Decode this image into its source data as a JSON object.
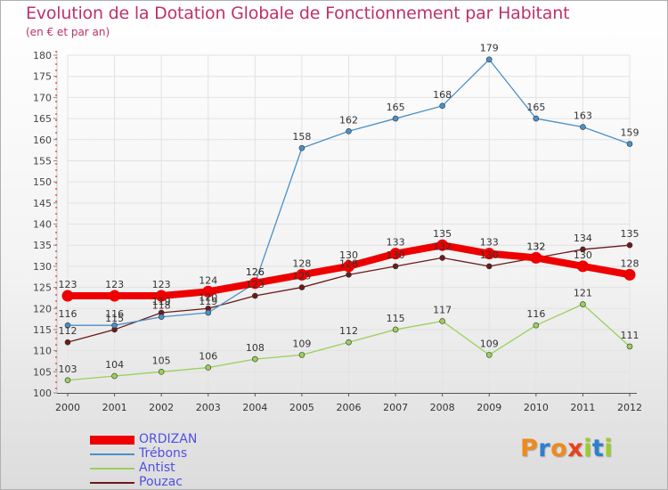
{
  "header": {
    "title": "Evolution de la Dotation Globale de Fonctionnement par Habitant",
    "subtitle": "(en € et par an)"
  },
  "logo": {
    "text": "Proxiti",
    "colors": [
      "#f08a1c",
      "#2e7fd0",
      "#f08a1c",
      "#e8401c",
      "#9ccc2c",
      "#2e7fd0",
      "#9ccc2c"
    ]
  },
  "chart_data": {
    "type": "line",
    "x": [
      "2000",
      "2001",
      "2002",
      "2003",
      "2004",
      "2005",
      "2006",
      "2007",
      "2008",
      "2009",
      "2010",
      "2011",
      "2012"
    ],
    "ylim": [
      100,
      180
    ],
    "yticks": [
      100,
      105,
      110,
      115,
      120,
      125,
      130,
      135,
      140,
      145,
      150,
      155,
      160,
      165,
      170,
      175,
      180
    ],
    "grid": true,
    "legend_position": "bottom-left",
    "series": [
      {
        "name": "ORDIZAN",
        "color": "#ee0000",
        "bold": true,
        "values": [
          123,
          123,
          123,
          124,
          126,
          128,
          130,
          133,
          135,
          133,
          132,
          130,
          128
        ],
        "labels": [
          "123",
          "123",
          "123",
          "124",
          "126",
          "128",
          "130",
          "133",
          "135",
          "133",
          "132",
          "130",
          "128"
        ]
      },
      {
        "name": "Trébons",
        "color": "#4a90c8",
        "bold": false,
        "values": [
          116,
          116,
          118,
          119,
          126,
          158,
          162,
          165,
          168,
          179,
          165,
          163,
          159
        ],
        "labels": [
          "116",
          "116",
          "118",
          "119",
          "126",
          "158",
          "162",
          "165",
          "168",
          "179",
          "165",
          "163",
          "159"
        ]
      },
      {
        "name": "Antist",
        "color": "#9ad05a",
        "bold": false,
        "values": [
          103,
          104,
          105,
          106,
          108,
          109,
          112,
          115,
          117,
          109,
          116,
          121,
          111
        ],
        "labels": [
          "103",
          "104",
          "105",
          "106",
          "108",
          "109",
          "112",
          "115",
          "117",
          "109",
          "116",
          "121",
          "111"
        ]
      },
      {
        "name": "Pouzac",
        "color": "#6e1a1a",
        "bold": false,
        "values": [
          112,
          115,
          119,
          120,
          123,
          125,
          128,
          130,
          132,
          130,
          132,
          134,
          135
        ],
        "labels": [
          "112",
          "115",
          "119",
          "120",
          "123",
          "125",
          "128",
          "130",
          "132",
          "130",
          "132",
          "134",
          "135"
        ]
      }
    ]
  }
}
